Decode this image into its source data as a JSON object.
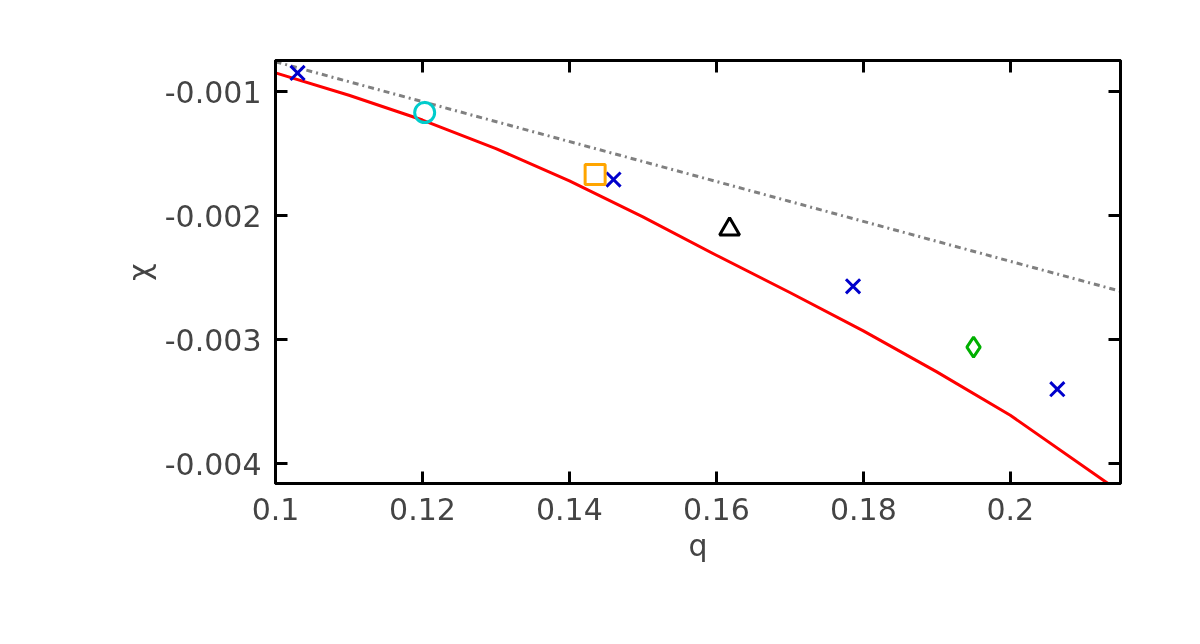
{
  "chart_data": {
    "type": "scatter",
    "xlabel": "q",
    "ylabel": "χ",
    "xlim": [
      0.1,
      0.215
    ],
    "ylim": [
      -0.00416,
      -0.00075
    ],
    "xticks": [
      0.1,
      0.12,
      0.14,
      0.16,
      0.18,
      0.2
    ],
    "yticks": [
      -0.004,
      -0.003,
      -0.002,
      -0.001
    ],
    "grid": false,
    "series": [
      {
        "type": "line",
        "color": "#ff0000",
        "line_style": "solid",
        "x": [
          0.1,
          0.11,
          0.12,
          0.13,
          0.14,
          0.15,
          0.16,
          0.17,
          0.18,
          0.19,
          0.2,
          0.2133
        ],
        "values": [
          -0.00085,
          -0.00103,
          -0.00123,
          -0.00146,
          -0.00172,
          -0.00201,
          -0.00232,
          -0.00262,
          -0.00293,
          -0.00326,
          -0.00361,
          -0.00416
        ]
      },
      {
        "type": "line",
        "color": "#808080",
        "line_style": "dashdot",
        "x": [
          0.1,
          0.215
        ],
        "values": [
          -0.00076,
          -0.00261
        ]
      },
      {
        "color": "#0000cc",
        "marker": "cross",
        "x": [
          0.103,
          0.146,
          0.1786,
          0.2064
        ],
        "values": [
          -0.00085,
          -0.00171,
          -0.00257,
          -0.0034
        ]
      },
      {
        "color": "#00cccc",
        "marker": "circle",
        "x": [
          0.1203
        ],
        "values": [
          -0.00117
        ]
      },
      {
        "color": "#ffa500",
        "marker": "square",
        "x": [
          0.1435
        ],
        "values": [
          -0.00167
        ]
      },
      {
        "color": "#000000",
        "marker": "triangle",
        "x": [
          0.1618
        ],
        "values": [
          -0.00211
        ]
      },
      {
        "color": "#00b000",
        "marker": "diamond",
        "x": [
          0.195
        ],
        "values": [
          -0.00306
        ]
      }
    ]
  }
}
